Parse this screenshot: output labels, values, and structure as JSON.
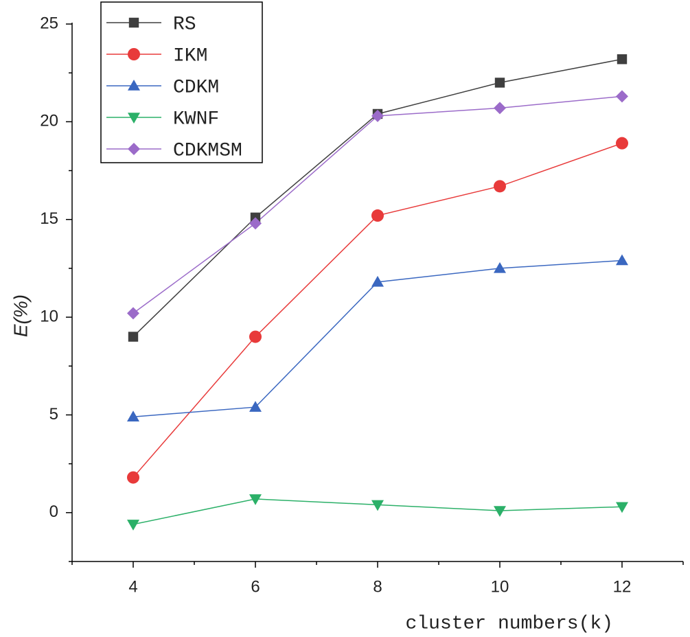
{
  "chart_data": {
    "type": "line",
    "x_label": "cluster numbers(k)",
    "y_label": "E(%)",
    "x": [
      4,
      6,
      8,
      10,
      12
    ],
    "series": [
      {
        "name": "RS",
        "color": "#3f3f3f",
        "marker": "square",
        "values": [
          9.0,
          15.1,
          20.4,
          22.0,
          23.2
        ]
      },
      {
        "name": "IKM",
        "color": "#e83a3a",
        "marker": "circle",
        "values": [
          1.8,
          9.0,
          15.2,
          16.7,
          18.9
        ]
      },
      {
        "name": "CDKM",
        "color": "#3a67c0",
        "marker": "triangle-up",
        "values": [
          4.9,
          5.4,
          11.8,
          12.5,
          12.9
        ]
      },
      {
        "name": "KWNF",
        "color": "#2bb068",
        "marker": "triangle-down",
        "values": [
          -0.6,
          0.7,
          0.4,
          0.1,
          0.3
        ]
      },
      {
        "name": "CDKMSM",
        "color": "#9b6bc9",
        "marker": "diamond",
        "values": [
          10.2,
          14.8,
          20.3,
          20.7,
          21.3
        ]
      }
    ],
    "xlim": [
      3,
      13
    ],
    "xticks": [
      4,
      6,
      8,
      10,
      12
    ],
    "xminorticks": [
      3,
      5,
      7,
      9,
      11,
      13
    ],
    "ylim": [
      -2.5,
      25
    ],
    "yticks": [
      0,
      5,
      10,
      15,
      20,
      25
    ],
    "yminorticks": [
      -2.5,
      2.5,
      7.5,
      12.5,
      17.5,
      22.5
    ],
    "legend": "upper-left",
    "grid": false
  }
}
